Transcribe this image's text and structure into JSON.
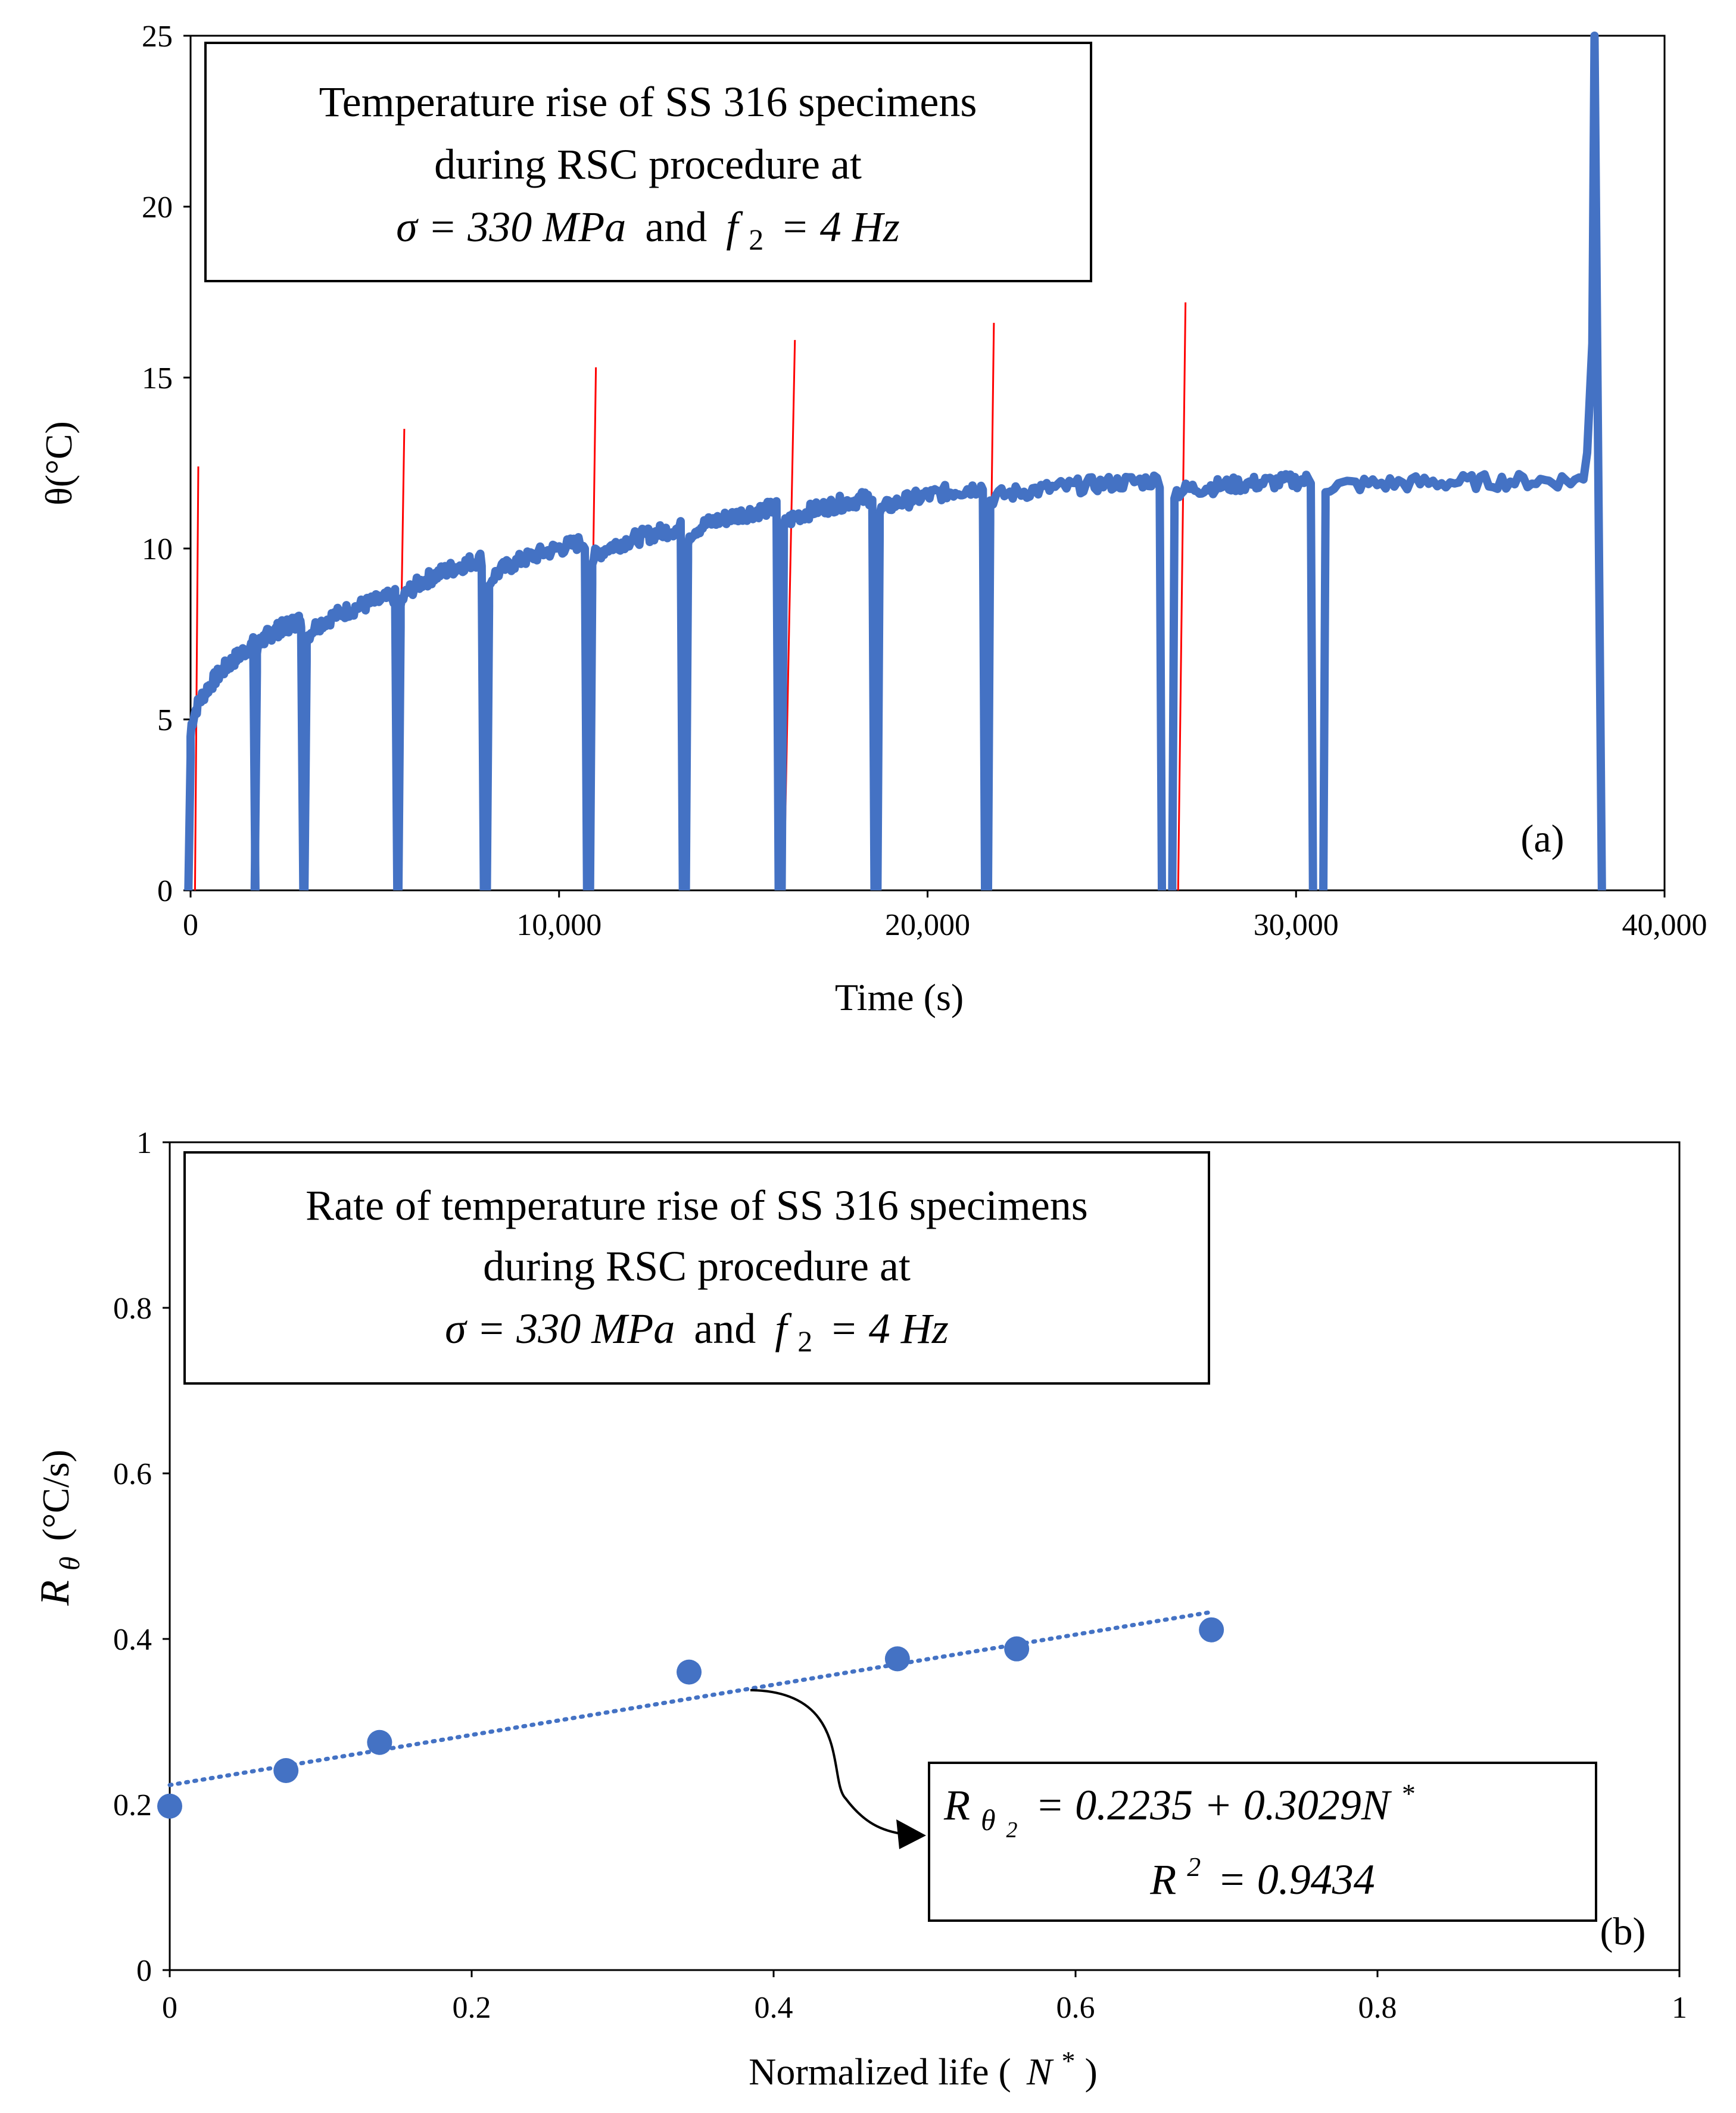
{
  "chart_data": [
    {
      "id": "a",
      "type": "line",
      "panel_label": "(a)",
      "xlabel": "Time (s)",
      "ylabel": "θ(°C)",
      "xlim": [
        0,
        40000
      ],
      "ylim": [
        0,
        25
      ],
      "x_ticks": [
        0,
        10000,
        20000,
        30000,
        40000
      ],
      "x_tick_labels": [
        "0",
        "10,000",
        "20,000",
        "30,000",
        "40,000"
      ],
      "y_ticks": [
        0,
        5,
        10,
        15,
        20,
        25
      ],
      "y_tick_labels": [
        "0",
        "5",
        "10",
        "15",
        "20",
        "25"
      ],
      "annotation": {
        "line1": "Temperature rise of SS 316 specimens",
        "line2": "during RSC procedure at",
        "line3_sigma": "σ = 330 MPa",
        "line3_and": "and",
        "line3_freq": "f",
        "line3_freq_sub": "2",
        "line3_freq_rest": "= 4 Hz"
      },
      "series": [
        {
          "color": "#4472C4",
          "segments": [
            {
              "start": 0,
              "end": 1700,
              "v0": 4.5,
              "v1": 7.2
            },
            {
              "start": 1800,
              "end": 3000,
              "v0": 7.0,
              "v1": 7.9
            },
            {
              "start": 3150,
              "end": 5550,
              "v0": 7.3,
              "v1": 8.6
            },
            {
              "start": 5700,
              "end": 7900,
              "v0": 8.3,
              "v1": 9.7
            },
            {
              "start": 8100,
              "end": 10700,
              "v0": 8.9,
              "v1": 10.2
            },
            {
              "start": 10900,
              "end": 13300,
              "v0": 9.6,
              "v1": 10.6
            },
            {
              "start": 13500,
              "end": 15900,
              "v0": 10.3,
              "v1": 11.2
            },
            {
              "start": 16100,
              "end": 18500,
              "v0": 10.6,
              "v1": 11.5
            },
            {
              "start": 18700,
              "end": 21500,
              "v0": 11.0,
              "v1": 11.8
            },
            {
              "start": 21700,
              "end": 26300,
              "v0": 11.4,
              "v1": 12.0
            },
            {
              "start": 26700,
              "end": 30400,
              "v0": 11.6,
              "v1": 12.0
            },
            {
              "start": 30800,
              "end": 37800,
              "v0": 11.8,
              "v1": 12.0
            }
          ],
          "final_rise": {
            "x": 38100,
            "peak": 25,
            "end": 38300
          }
        },
        {
          "color": "#FF0000",
          "spikes": [
            {
              "x0": 120,
              "x1": 210,
              "peak": 12.4
            },
            {
              "x0": 5600,
              "x1": 5800,
              "peak": 13.5
            },
            {
              "x0": 10800,
              "x1": 11000,
              "peak": 15.3
            },
            {
              "x0": 16100,
              "x1": 16400,
              "peak": 16.1
            },
            {
              "x0": 21600,
              "x1": 21800,
              "peak": 16.6
            },
            {
              "x0": 26800,
              "x1": 27000,
              "peak": 17.2
            }
          ]
        }
      ]
    },
    {
      "id": "b",
      "type": "scatter",
      "panel_label": "(b)",
      "xlabel": "Normalized life (",
      "xlabel_math": "N",
      "xlabel_sup": "*",
      "xlabel_close": ")",
      "ylabel_main": "R",
      "ylabel_sub": "θ",
      "ylabel_units": "(°C/s)",
      "xlim": [
        0,
        1
      ],
      "ylim": [
        0,
        1
      ],
      "x_ticks": [
        0,
        0.2,
        0.4,
        0.6,
        0.8,
        1
      ],
      "x_tick_labels": [
        "0",
        "0.2",
        "0.4",
        "0.6",
        "0.8",
        "1"
      ],
      "y_ticks": [
        0,
        0.2,
        0.4,
        0.6,
        0.8,
        1
      ],
      "y_tick_labels": [
        "0",
        "0.2",
        "0.4",
        "0.6",
        "0.8",
        "1"
      ],
      "annotation": {
        "line1": "Rate of temperature rise of SS 316 specimens",
        "line2": "during RSC procedure at",
        "line3_sigma": "σ = 330 MPa",
        "line3_and": "and",
        "line3_freq": "f",
        "line3_freq_sub": "2",
        "line3_freq_rest": "= 4 Hz"
      },
      "equation": {
        "lhs": "R",
        "lhs_sub": "θ",
        "lhs_subsub": "2",
        "rhs": "= 0.2235 + 0.3029N",
        "rhs_sup": "*",
        "r2": "R",
        "r2_sup": "2",
        "r2_rest": "= 0.9434"
      },
      "points": [
        {
          "x": 0.0,
          "y": 0.198
        },
        {
          "x": 0.077,
          "y": 0.241
        },
        {
          "x": 0.139,
          "y": 0.275
        },
        {
          "x": 0.344,
          "y": 0.36
        },
        {
          "x": 0.482,
          "y": 0.376
        },
        {
          "x": 0.561,
          "y": 0.388
        },
        {
          "x": 0.69,
          "y": 0.411
        }
      ],
      "trendline": {
        "intercept": 0.2235,
        "slope": 0.3029,
        "x_range": [
          0,
          0.69
        ]
      },
      "point_color": "#4472C4"
    }
  ]
}
